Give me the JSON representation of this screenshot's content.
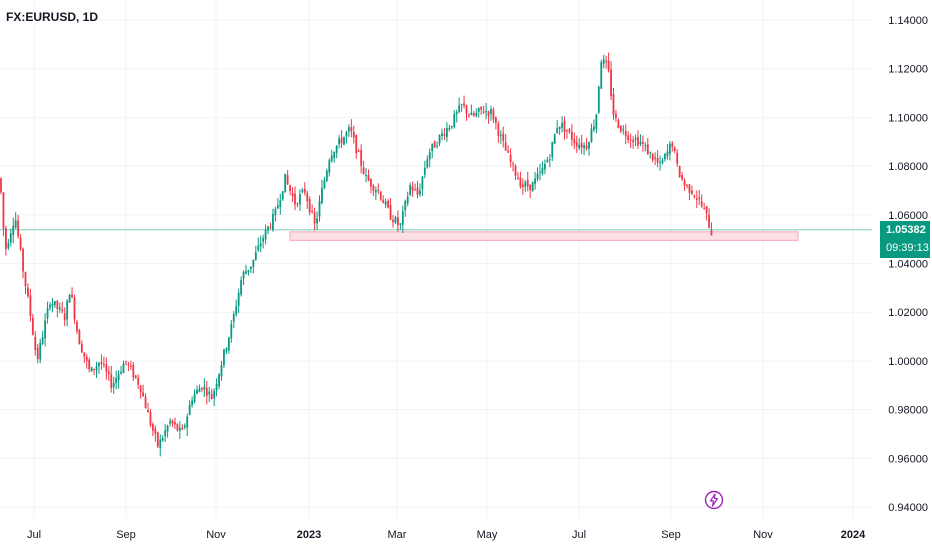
{
  "symbol": "FX:EURUSD, 1D",
  "last_price": "1.05382",
  "countdown": "09:39:13",
  "colors": {
    "up": "#089981",
    "down": "#f23645",
    "grid": "#f0f3fa",
    "zone_fill": "#fadfe4",
    "zone_stroke": "#f7a8b4",
    "price_line": "#089981",
    "flash_icon": "#9c27b0"
  },
  "icons": {
    "flash": "lightning-bolt-icon"
  },
  "chart_data": {
    "type": "candlestick",
    "y_ticks": [
      "1.14000",
      "1.12000",
      "1.10000",
      "1.08000",
      "1.06000",
      "1.04000",
      "1.02000",
      "1.00000",
      "0.98000",
      "0.96000",
      "0.94000"
    ],
    "x_ticks": [
      "Jul",
      "Sep",
      "Nov",
      "2023",
      "Mar",
      "May",
      "Jul",
      "Sep",
      "Nov",
      "2024"
    ],
    "ylim": [
      0.9337,
      1.1457
    ],
    "grid": true,
    "support_zone": {
      "y_low": 1.0495,
      "y_high": 1.053
    },
    "current_price": 1.05382,
    "anchors": [
      [
        0,
        1.075
      ],
      [
        5,
        1.045
      ],
      [
        15,
        1.06
      ],
      [
        22,
        1.04
      ],
      [
        30,
        1.02
      ],
      [
        37,
        1.0
      ],
      [
        50,
        1.025
      ],
      [
        65,
        1.018
      ],
      [
        70,
        1.03
      ],
      [
        78,
        1.01
      ],
      [
        90,
        0.995
      ],
      [
        100,
        1.0
      ],
      [
        112,
        0.99
      ],
      [
        125,
        1.0
      ],
      [
        140,
        0.99
      ],
      [
        150,
        0.975
      ],
      [
        158,
        0.965
      ],
      [
        170,
        0.975
      ],
      [
        182,
        0.97
      ],
      [
        192,
        0.985
      ],
      [
        202,
        0.99
      ],
      [
        212,
        0.985
      ],
      [
        222,
        1.0
      ],
      [
        232,
        1.015
      ],
      [
        242,
        1.035
      ],
      [
        252,
        1.04
      ],
      [
        262,
        1.05
      ],
      [
        275,
        1.06
      ],
      [
        285,
        1.075
      ],
      [
        295,
        1.065
      ],
      [
        305,
        1.07
      ],
      [
        315,
        1.055
      ],
      [
        322,
        1.07
      ],
      [
        330,
        1.085
      ],
      [
        340,
        1.09
      ],
      [
        350,
        1.095
      ],
      [
        358,
        1.085
      ],
      [
        366,
        1.075
      ],
      [
        378,
        1.07
      ],
      [
        390,
        1.06
      ],
      [
        400,
        1.055
      ],
      [
        410,
        1.072
      ],
      [
        418,
        1.068
      ],
      [
        428,
        1.085
      ],
      [
        440,
        1.092
      ],
      [
        452,
        1.098
      ],
      [
        462,
        1.105
      ],
      [
        472,
        1.1
      ],
      [
        482,
        1.103
      ],
      [
        492,
        1.102
      ],
      [
        502,
        1.09
      ],
      [
        512,
        1.08
      ],
      [
        522,
        1.072
      ],
      [
        532,
        1.072
      ],
      [
        542,
        1.078
      ],
      [
        550,
        1.085
      ],
      [
        558,
        1.098
      ],
      [
        566,
        1.095
      ],
      [
        575,
        1.09
      ],
      [
        586,
        1.088
      ],
      [
        596,
        1.1
      ],
      [
        601,
        1.124
      ],
      [
        608,
        1.12
      ],
      [
        614,
        1.1
      ],
      [
        622,
        1.095
      ],
      [
        630,
        1.092
      ],
      [
        640,
        1.09
      ],
      [
        650,
        1.085
      ],
      [
        660,
        1.08
      ],
      [
        668,
        1.086
      ],
      [
        672,
        1.09
      ],
      [
        678,
        1.078
      ],
      [
        685,
        1.072
      ],
      [
        692,
        1.07
      ],
      [
        700,
        1.065
      ],
      [
        706,
        1.06
      ],
      [
        712,
        1.052
      ]
    ]
  }
}
